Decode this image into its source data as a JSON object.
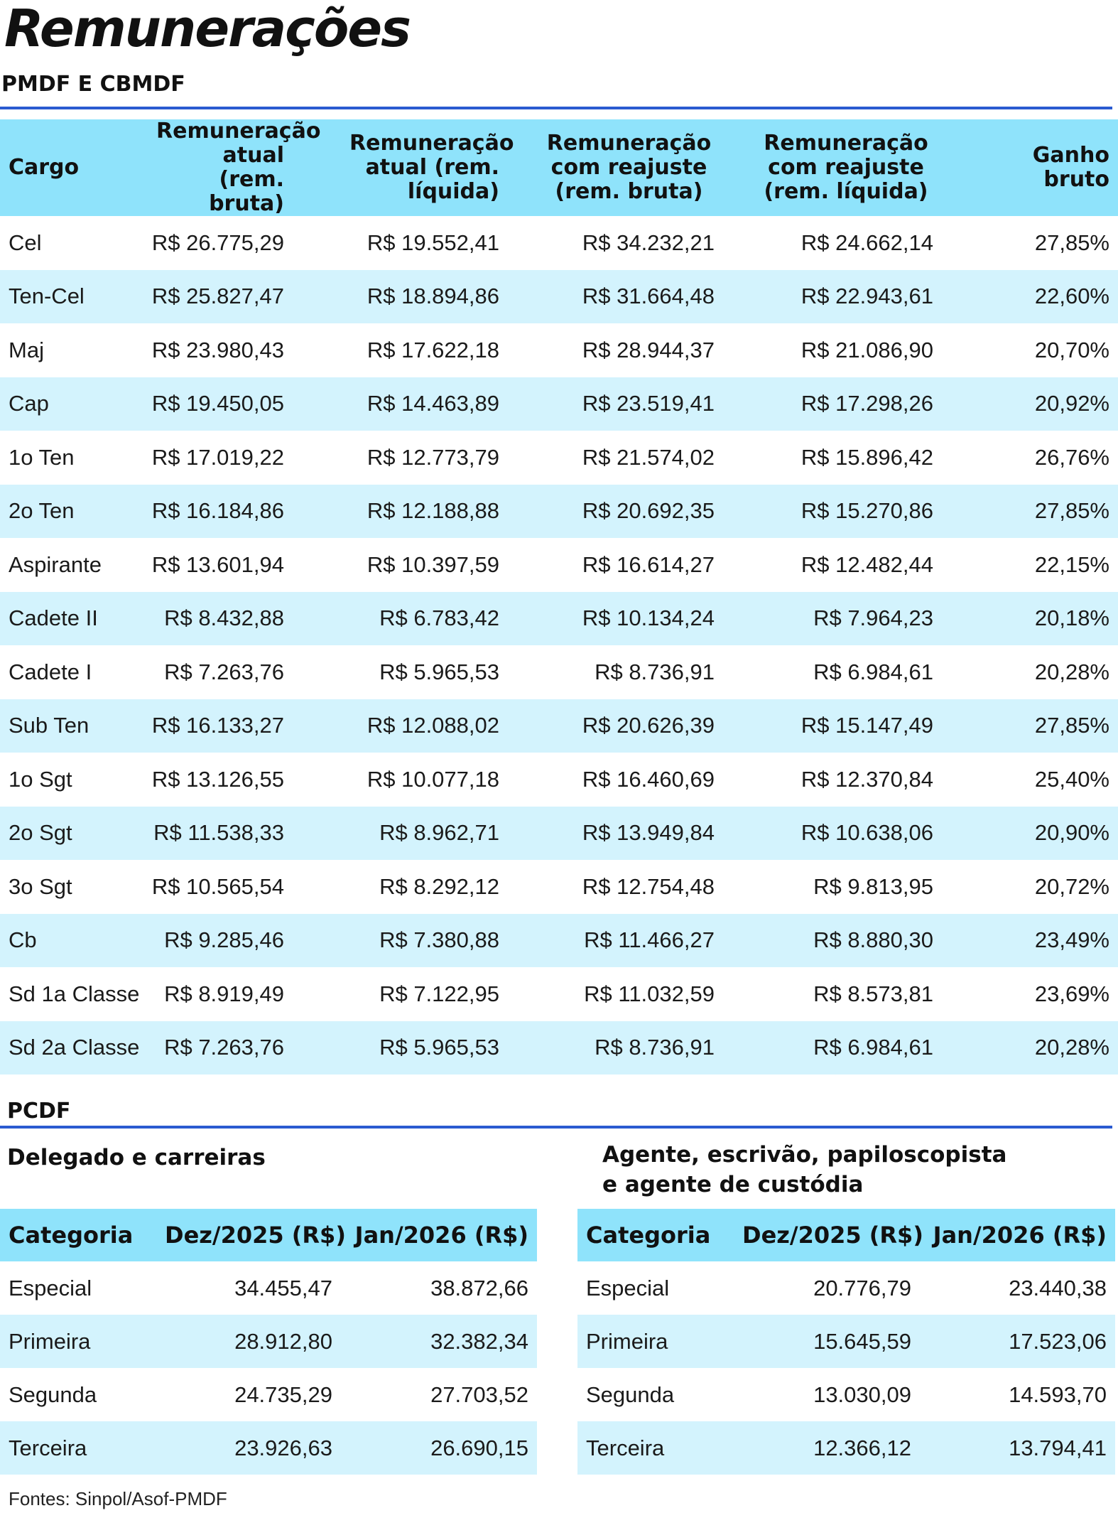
{
  "title": "Remunerações",
  "subtitle": "PMDF E CBMDF",
  "pmdf_table": {
    "headers": [
      "Cargo",
      "Remuneração atual (rem. bruta)",
      "Remuneração atual (rem. líquida)",
      "Remuneração com reajuste (rem. bruta)",
      "Remuneração com reajuste (rem. líquida)",
      "Ganho bruto"
    ],
    "rows": [
      [
        "Cel",
        "R$ 26.775,29",
        "R$ 19.552,41",
        "R$ 34.232,21",
        "R$ 24.662,14",
        "27,85%"
      ],
      [
        "Ten-Cel",
        "R$ 25.827,47",
        "R$ 18.894,86",
        "R$ 31.664,48",
        "R$ 22.943,61",
        "22,60%"
      ],
      [
        "Maj",
        "R$ 23.980,43",
        "R$ 17.622,18",
        "R$ 28.944,37",
        "R$ 21.086,90",
        "20,70%"
      ],
      [
        "Cap",
        "R$ 19.450,05",
        "R$ 14.463,89",
        "R$ 23.519,41",
        "R$ 17.298,26",
        "20,92%"
      ],
      [
        "1o Ten",
        "R$ 17.019,22",
        "R$ 12.773,79",
        "R$ 21.574,02",
        "R$ 15.896,42",
        "26,76%"
      ],
      [
        "2o Ten",
        "R$ 16.184,86",
        "R$ 12.188,88",
        "R$ 20.692,35",
        "R$ 15.270,86",
        "27,85%"
      ],
      [
        "Aspirante",
        "R$ 13.601,94",
        "R$ 10.397,59",
        "R$ 16.614,27",
        "R$ 12.482,44",
        "22,15%"
      ],
      [
        "Cadete II",
        "R$ 8.432,88",
        "R$ 6.783,42",
        "R$ 10.134,24",
        "R$ 7.964,23",
        "20,18%"
      ],
      [
        "Cadete I",
        "R$ 7.263,76",
        "R$ 5.965,53",
        "R$ 8.736,91",
        "R$ 6.984,61",
        "20,28%"
      ],
      [
        "Sub Ten",
        "R$ 16.133,27",
        "R$ 12.088,02",
        "R$ 20.626,39",
        "R$ 15.147,49",
        "27,85%"
      ],
      [
        "1o Sgt",
        "R$ 13.126,55",
        "R$ 10.077,18",
        "R$ 16.460,69",
        "R$ 12.370,84",
        "25,40%"
      ],
      [
        "2o Sgt",
        "R$ 11.538,33",
        "R$ 8.962,71",
        "R$ 13.949,84",
        "R$ 10.638,06",
        "20,90%"
      ],
      [
        "3o Sgt",
        "R$ 10.565,54",
        "R$ 8.292,12",
        "R$ 12.754,48",
        "R$ 9.813,95",
        "20,72%"
      ],
      [
        "Cb",
        "R$ 9.285,46",
        "R$ 7.380,88",
        "R$ 11.466,27",
        "R$ 8.880,30",
        "23,49%"
      ],
      [
        "Sd 1a Classe",
        "R$ 8.919,49",
        "R$ 7.122,95",
        "R$ 11.032,59",
        "R$ 8.573,81",
        "23,69%"
      ],
      [
        "Sd 2a Classe",
        "R$ 7.263,76",
        "R$ 5.965,53",
        "R$ 8.736,91",
        "R$ 6.984,61",
        "20,28%"
      ]
    ]
  },
  "pcdf": {
    "label": "PCDF",
    "left": {
      "title": "Delegado e carreiras",
      "headers": [
        "Categoria",
        "Dez/2025 (R$)",
        "Jan/2026 (R$)"
      ],
      "rows": [
        [
          "Especial",
          "34.455,47",
          "38.872,66"
        ],
        [
          "Primeira",
          "28.912,80",
          "32.382,34"
        ],
        [
          "Segunda",
          "24.735,29",
          "27.703,52"
        ],
        [
          "Terceira",
          "23.926,63",
          "26.690,15"
        ]
      ]
    },
    "right": {
      "title_line1": "Agente, escrivão, papiloscopista",
      "title_line2": "e agente de custódia",
      "headers": [
        "Categoria",
        "Dez/2025 (R$)",
        "Jan/2026 (R$)"
      ],
      "rows": [
        [
          "Especial",
          "20.776,79",
          "23.440,38"
        ],
        [
          "Primeira",
          "15.645,59",
          "17.523,06"
        ],
        [
          "Segunda",
          "13.030,09",
          "14.593,70"
        ],
        [
          "Terceira",
          "12.366,12",
          "13.794,41"
        ]
      ]
    }
  },
  "source": "Fontes: Sinpol/Asof-PMDF"
}
